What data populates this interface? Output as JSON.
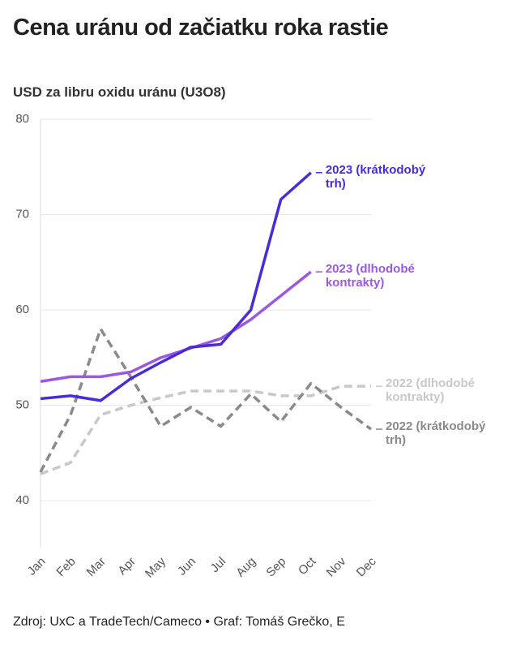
{
  "chart_data": {
    "type": "line",
    "title": "Cena uránu od začiatku roka rastie",
    "subtitle": "USD za libru oxidu uránu (U3O8)",
    "source": "Zdroj: UxC a TradeTech/Cameco • Graf: Tomáš Grečko, E",
    "categories": [
      "Jan",
      "Feb",
      "Mar",
      "Apr",
      "May",
      "Jun",
      "Jul",
      "Aug",
      "Sep",
      "Oct",
      "Nov",
      "Dec"
    ],
    "series": [
      {
        "name": "2022 (dlhodobé kontrakty)",
        "color": "#c8c8c8",
        "dashed": true,
        "values": [
          42.8,
          44,
          49,
          50,
          50.8,
          51.5,
          51.5,
          51.5,
          51,
          51,
          52,
          52
        ]
      },
      {
        "name": "2022 (krátkodobý trh)",
        "color": "#8a8a8a",
        "dashed": true,
        "values": [
          43,
          49,
          58,
          53,
          47.8,
          49.8,
          47.8,
          51.2,
          48.3,
          52.3,
          49.8,
          47.5
        ]
      },
      {
        "name": "2023 (dlhodobé kontrakty)",
        "color": "#9b59e0",
        "dashed": false,
        "values": [
          52.5,
          53,
          53,
          53.5,
          55,
          56,
          57,
          59,
          61.5,
          64,
          null,
          null
        ]
      },
      {
        "name": "2023 (krátkodobý trh)",
        "color": "#4a2bd6",
        "dashed": false,
        "values": [
          50.7,
          51,
          50.5,
          52.8,
          54.5,
          56.1,
          56.4,
          60,
          71.6,
          74.4,
          null,
          null
        ]
      }
    ],
    "ylim": [
      35,
      80
    ],
    "yticks": [
      40,
      50,
      60,
      70,
      80
    ],
    "grid": true
  }
}
